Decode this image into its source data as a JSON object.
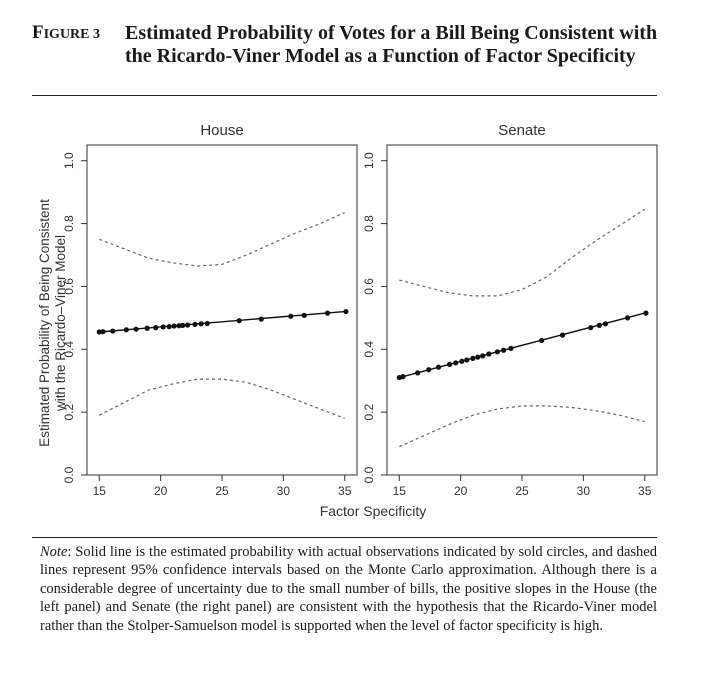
{
  "figure": {
    "label_first": "F",
    "label_rest": "IGURE 3",
    "title": "Estimated Probability of Votes for a Bill Being Consistent with the Ricardo-Viner Model as a Function of Factor Specificity"
  },
  "chart_data": [
    {
      "type": "line",
      "title": "House",
      "xlabel": "Factor Specificity",
      "ylabel": "Estimated Probability of Being Consistent with the Ricardo–Viner Model",
      "xlim": [
        14,
        36
      ],
      "ylim": [
        0,
        1.05
      ],
      "x_ticks": [
        15,
        20,
        25,
        30,
        35
      ],
      "y_ticks": [
        0.0,
        0.2,
        0.4,
        0.6,
        0.8,
        1.0
      ],
      "y_tick_labels": [
        "0.0",
        "0.2",
        "0.4",
        "0.6",
        "0.8",
        "1.0"
      ],
      "grid": false,
      "series": [
        {
          "kind": "estimate",
          "style": "solid",
          "x": [
            15,
            35
          ],
          "y": [
            0.455,
            0.52
          ]
        },
        {
          "kind": "upper_ci",
          "style": "dashed",
          "x": [
            15,
            17,
            19,
            21,
            23,
            25,
            27,
            29,
            31,
            33,
            35
          ],
          "y": [
            0.75,
            0.72,
            0.69,
            0.675,
            0.665,
            0.67,
            0.7,
            0.735,
            0.77,
            0.8,
            0.835
          ]
        },
        {
          "kind": "lower_ci",
          "style": "dashed",
          "x": [
            15,
            17,
            19,
            21,
            23,
            25,
            27,
            29,
            31,
            33,
            35
          ],
          "y": [
            0.19,
            0.23,
            0.27,
            0.29,
            0.305,
            0.305,
            0.295,
            0.27,
            0.24,
            0.21,
            0.18
          ]
        },
        {
          "kind": "observations",
          "style": "points",
          "x": [
            15,
            15.3,
            16.1,
            17.2,
            18,
            18.9,
            19.6,
            20.2,
            20.7,
            21.1,
            21.5,
            21.8,
            22.2,
            22.8,
            23.3,
            23.8,
            26.4,
            28.2,
            30.6,
            31.7,
            33.6,
            35.1
          ],
          "y": [
            0.455,
            0.456,
            0.458,
            0.462,
            0.464,
            0.467,
            0.469,
            0.471,
            0.472,
            0.474,
            0.475,
            0.476,
            0.477,
            0.479,
            0.481,
            0.482,
            0.491,
            0.496,
            0.505,
            0.508,
            0.515,
            0.52
          ]
        }
      ]
    },
    {
      "type": "line",
      "title": "Senate",
      "xlabel": "Factor Specificity",
      "xlim": [
        14,
        36
      ],
      "ylim": [
        0,
        1.05
      ],
      "x_ticks": [
        15,
        20,
        25,
        30,
        35
      ],
      "y_ticks": [
        0.0,
        0.2,
        0.4,
        0.6,
        0.8,
        1.0
      ],
      "y_tick_labels": [
        "0.0",
        "0.2",
        "0.4",
        "0.6",
        "0.8",
        "1.0"
      ],
      "grid": false,
      "series": [
        {
          "kind": "estimate",
          "style": "solid",
          "x": [
            15,
            35
          ],
          "y": [
            0.31,
            0.515
          ]
        },
        {
          "kind": "upper_ci",
          "style": "dashed",
          "x": [
            15,
            17,
            19,
            21,
            23,
            25,
            27,
            29,
            31,
            33,
            35
          ],
          "y": [
            0.62,
            0.6,
            0.58,
            0.57,
            0.57,
            0.59,
            0.63,
            0.69,
            0.745,
            0.795,
            0.845
          ]
        },
        {
          "kind": "lower_ci",
          "style": "dashed",
          "x": [
            15,
            17,
            19,
            21,
            23,
            25,
            27,
            29,
            31,
            33,
            35
          ],
          "y": [
            0.09,
            0.125,
            0.16,
            0.19,
            0.21,
            0.22,
            0.22,
            0.215,
            0.205,
            0.19,
            0.17
          ]
        },
        {
          "kind": "observations",
          "style": "points",
          "x": [
            15,
            15.3,
            16.5,
            17.4,
            18.2,
            19.1,
            19.6,
            20.1,
            20.5,
            21,
            21.4,
            21.8,
            22.3,
            23,
            23.5,
            24.1,
            26.6,
            28.3,
            30.6,
            31.3,
            31.8,
            33.6,
            35.1
          ],
          "y": [
            0.31,
            0.313,
            0.325,
            0.335,
            0.343,
            0.352,
            0.357,
            0.362,
            0.366,
            0.371,
            0.375,
            0.379,
            0.385,
            0.392,
            0.397,
            0.403,
            0.428,
            0.445,
            0.469,
            0.476,
            0.481,
            0.5,
            0.515
          ]
        }
      ]
    }
  ],
  "note": {
    "lead": "Note",
    "text": ": Solid line is the estimated probability with actual observations indicated by sold circles, and dashed lines represent 95% confidence intervals based on the Monte Carlo approximation. Although there is a considerable degree of uncertainty due to the small number of bills, the positive slopes in the House (the left panel) and Senate (the right panel) are consistent with the hypothesis that the Ricardo-Viner model rather than the Stolper-Samuelson model is supported when the level of factor specificity is high."
  }
}
